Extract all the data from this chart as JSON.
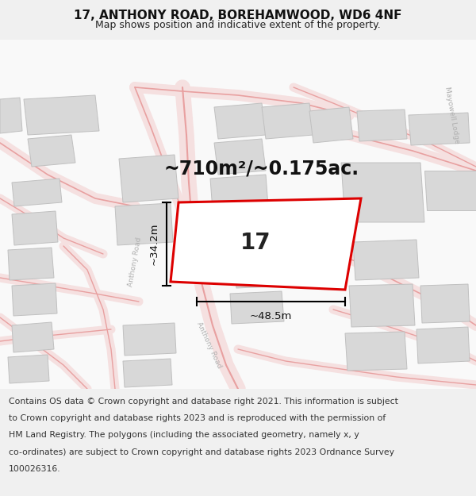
{
  "title": "17, ANTHONY ROAD, BOREHAMWOOD, WD6 4NF",
  "subtitle": "Map shows position and indicative extent of the property.",
  "area_label": "~710m²/~0.175ac.",
  "number_label": "17",
  "dim_width_label": "~48.5m",
  "dim_height_label": "~34.2m",
  "footer_lines": [
    "Contains OS data © Crown copyright and database right 2021. This information is subject",
    "to Crown copyright and database rights 2023 and is reproduced with the permission of",
    "HM Land Registry. The polygons (including the associated geometry, namely x, y",
    "co-ordinates) are subject to Crown copyright and database rights 2023 Ordnance Survey",
    "100026316."
  ],
  "bg_color": "#f0f0f0",
  "map_bg": "#f8f8f8",
  "footer_bg": "#ffffff",
  "red_plot_color": "#dd0000",
  "road_color": "#f0a0a0",
  "road_edge_color": "#e07070",
  "building_fill": "#d8d8d8",
  "building_edge": "#c0c0c0",
  "title_fontsize": 11,
  "subtitle_fontsize": 9,
  "area_fontsize": 17,
  "number_fontsize": 20,
  "dim_fontsize": 9.5,
  "footer_fontsize": 7.8,
  "road_label_color": "#b0b0b0",
  "road_label_fontsize": 6.5
}
